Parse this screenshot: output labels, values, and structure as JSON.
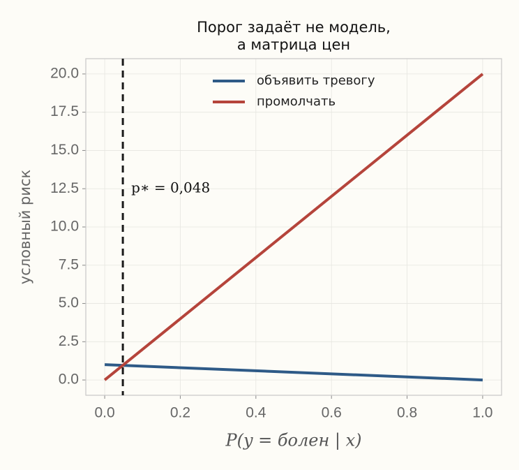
{
  "chart_data": {
    "type": "line",
    "title": [
      "Порог задаёт не модель,",
      "а матрица цен"
    ],
    "xlabel": "P(y = болен | x)",
    "ylabel": "условный риск",
    "x": [
      0,
      1
    ],
    "series": [
      {
        "name": "объявить тревогу",
        "color": "#2e5a87",
        "values": [
          1,
          0
        ]
      },
      {
        "name": "промолчать",
        "color": "#b5443b",
        "values": [
          0,
          20
        ]
      }
    ],
    "threshold": 0.048,
    "annotation": "p∗ = 0,048",
    "xlim": [
      -0.05,
      1.05
    ],
    "ylim": [
      -1,
      21
    ],
    "xticks": [
      {
        "value": 0,
        "label": "0.0"
      },
      0.2,
      0.4,
      0.6,
      0.8,
      {
        "value": 1,
        "label": "1.0"
      }
    ],
    "yticks": [
      {
        "value": 0,
        "label": "0.0"
      },
      2.5,
      {
        "value": 5,
        "label": "5.0"
      },
      7.5,
      {
        "value": 10,
        "label": "10.0"
      },
      12.5,
      {
        "value": 15,
        "label": "15.0"
      },
      17.5,
      {
        "value": 20,
        "label": "20.0"
      }
    ],
    "grid": true,
    "legend": "upper center"
  }
}
